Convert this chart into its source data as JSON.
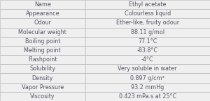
{
  "rows": [
    [
      "Name",
      "Ethyl acetate"
    ],
    [
      "Appearance",
      "Colourless liquid"
    ],
    [
      "Odour",
      "Ether-like, fruity odour"
    ],
    [
      "Molecular weight",
      "88.11 g/mol"
    ],
    [
      "Boiling point",
      "77.1°C"
    ],
    [
      "Melting point",
      "-83.8°C"
    ],
    [
      "Flashpoint",
      "-4°C"
    ],
    [
      "Solubility",
      "Very soluble in water"
    ],
    [
      "Density",
      "0.897 g/cm³"
    ],
    [
      "Vapor Pressure",
      "93.2 mmHg"
    ],
    [
      "Viscosity",
      "0.423 mPa.s at 25°C"
    ]
  ],
  "row_bg": "#efefef",
  "border_color": "#b0b0b0",
  "text_color": "#555566",
  "font_size": 5.8,
  "col_split": 0.405,
  "fig_width": 3.0,
  "fig_height": 1.45,
  "dpi": 100
}
